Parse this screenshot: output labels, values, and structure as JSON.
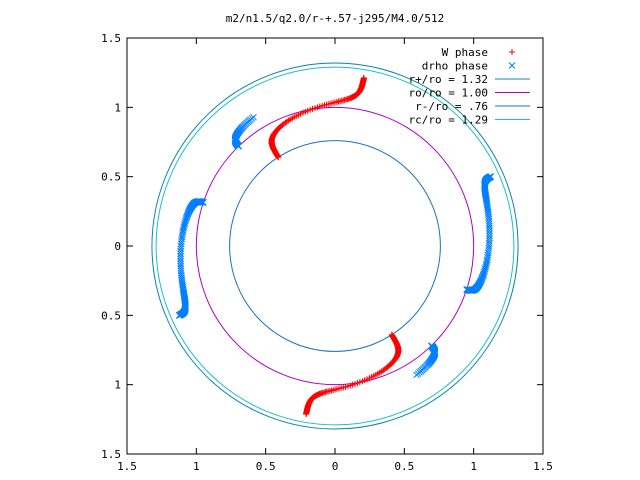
{
  "chart_data": {
    "type": "scatter",
    "title": "m2/n1.5/q2.0/r-+.57-j295/M4.0/512",
    "xlim": [
      -1.5,
      1.5
    ],
    "ylim": [
      -1.5,
      1.5
    ],
    "x_tick_values": [
      -1.5,
      -1,
      -0.5,
      0,
      0.5,
      1,
      1.5
    ],
    "x_tick_labels": [
      "1.5",
      "1",
      "0.5",
      "0",
      "0.5",
      "1",
      "1.5"
    ],
    "y_tick_values": [
      1.5,
      1,
      0.5,
      0,
      -0.5,
      -1,
      -1.5
    ],
    "y_tick_labels": [
      "1.5",
      "1",
      "0.5",
      "0",
      "0.5",
      "1",
      "1.5"
    ],
    "grid": false,
    "legend_position": "top-right",
    "series": [
      {
        "name": "W phase",
        "marker": "plus",
        "color": "#ff0000",
        "points": []
      },
      {
        "name": "drho phase",
        "marker": "cross",
        "color": "#0080ff",
        "points": []
      }
    ],
    "circles": [
      {
        "name": "r+/ro = 1.32",
        "r": 1.32,
        "color": "#0f80b2"
      },
      {
        "name": "ro/ro = 1.00",
        "r": 1.0,
        "color": "#b000c8"
      },
      {
        "name": "r-/ro = .76",
        "r": 0.76,
        "color": "#1a73c0"
      },
      {
        "name": "rc/ro = 1.29",
        "r": 1.29,
        "color": "#18c0c8"
      }
    ]
  }
}
